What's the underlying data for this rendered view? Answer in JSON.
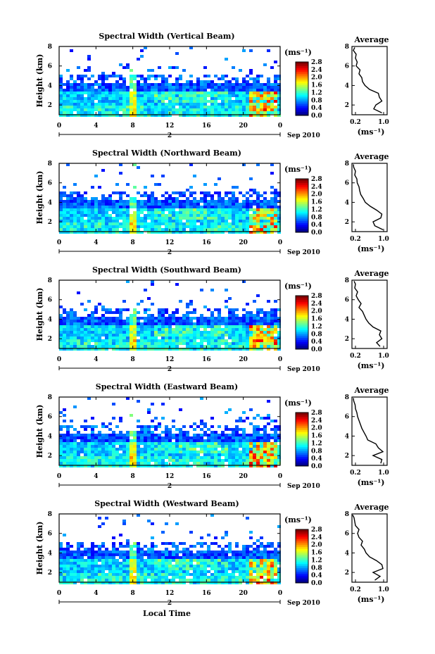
{
  "chart_data": [
    {
      "type": "heatmap",
      "title": "Spectral Width (Vertical Beam)",
      "ylabel": "Height (km)",
      "xlim": [
        0,
        24
      ],
      "ylim": [
        1,
        8
      ],
      "x_ticks": [
        "0",
        "4",
        "8",
        "12",
        "16",
        "20",
        "0"
      ],
      "y_ticks": [
        "2",
        "4",
        "6",
        "8"
      ],
      "date_label": "2",
      "date_suffix": "Sep 2010",
      "colorbar": {
        "unit": "(ms⁻¹)",
        "ticks": [
          "0.0",
          "0.4",
          "0.8",
          "1.2",
          "1.6",
          "2.0",
          "2.4",
          "2.8"
        ],
        "range": [
          0,
          2.8
        ]
      },
      "average": {
        "title": "Average",
        "xlabel": "(ms⁻¹)",
        "xlim": [
          0.1,
          1.1
        ],
        "ylim": [
          1,
          8
        ],
        "x_ticks": [
          "0.2",
          "1.0"
        ],
        "y_ticks": [
          "2",
          "4",
          "6",
          "8"
        ],
        "height": [
          1.2,
          1.6,
          2.0,
          2.4,
          2.8,
          3.2,
          3.6,
          4.0,
          4.4,
          4.8,
          5.2,
          5.6,
          6.0,
          6.4,
          6.8,
          7.2,
          7.6,
          7.9
        ],
        "width": [
          0.95,
          0.72,
          0.78,
          0.95,
          0.88,
          0.85,
          0.6,
          0.47,
          0.4,
          0.38,
          0.3,
          0.33,
          0.22,
          0.25,
          0.2,
          0.22,
          0.14,
          0.18
        ]
      }
    },
    {
      "type": "heatmap",
      "title": "Spectral Width (Northward Beam)",
      "ylabel": "Height (km)",
      "xlim": [
        0,
        24
      ],
      "ylim": [
        1,
        8
      ],
      "x_ticks": [
        "0",
        "4",
        "8",
        "12",
        "16",
        "20",
        "0"
      ],
      "y_ticks": [
        "2",
        "4",
        "6",
        "8"
      ],
      "date_label": "2",
      "date_suffix": "Sep 2010",
      "colorbar": {
        "unit": "(ms⁻¹)",
        "ticks": [
          "0.0",
          "0.4",
          "0.8",
          "1.2",
          "1.6",
          "2.0",
          "2.4",
          "2.8"
        ],
        "range": [
          0,
          2.8
        ]
      },
      "average": {
        "title": "Average",
        "xlabel": "(ms⁻¹)",
        "xlim": [
          0.1,
          1.1
        ],
        "ylim": [
          1,
          8
        ],
        "x_ticks": [
          "0.2",
          "1.0"
        ],
        "y_ticks": [
          "2",
          "4",
          "6",
          "8"
        ],
        "height": [
          1.2,
          1.6,
          2.0,
          2.4,
          2.8,
          3.2,
          3.6,
          4.0,
          4.4,
          4.8,
          5.2,
          5.6,
          6.0,
          6.4,
          6.8,
          7.2,
          7.6,
          7.9
        ],
        "width": [
          0.98,
          0.75,
          0.7,
          0.92,
          0.95,
          0.8,
          0.62,
          0.48,
          0.42,
          0.35,
          0.32,
          0.3,
          0.25,
          0.24,
          0.18,
          0.2,
          0.15,
          0.14
        ]
      }
    },
    {
      "type": "heatmap",
      "title": "Spectral Width (Southward Beam)",
      "ylabel": "Height (km)",
      "xlim": [
        0,
        24
      ],
      "ylim": [
        1,
        8
      ],
      "x_ticks": [
        "0",
        "4",
        "8",
        "12",
        "16",
        "20",
        "0"
      ],
      "y_ticks": [
        "2",
        "4",
        "6",
        "8"
      ],
      "date_label": "2",
      "date_suffix": "Sep 2010",
      "colorbar": {
        "unit": "(ms⁻¹)",
        "ticks": [
          "0.0",
          "0.4",
          "0.8",
          "1.2",
          "1.6",
          "2.0",
          "2.4",
          "2.8"
        ],
        "range": [
          0,
          2.8
        ]
      },
      "average": {
        "title": "Average",
        "xlabel": "(ms⁻¹)",
        "xlim": [
          0.1,
          1.1
        ],
        "ylim": [
          1,
          8
        ],
        "x_ticks": [
          "0.2",
          "1.0"
        ],
        "y_ticks": [
          "2",
          "4",
          "6",
          "8"
        ],
        "height": [
          1.2,
          1.6,
          2.0,
          2.4,
          2.8,
          3.2,
          3.6,
          4.0,
          4.4,
          4.8,
          5.2,
          5.6,
          6.0,
          6.4,
          6.8,
          7.2,
          7.6,
          7.9
        ],
        "width": [
          0.9,
          0.8,
          0.95,
          0.88,
          0.92,
          0.7,
          0.58,
          0.5,
          0.45,
          0.4,
          0.3,
          0.36,
          0.28,
          0.22,
          0.26,
          0.18,
          0.2,
          0.16
        ]
      }
    },
    {
      "type": "heatmap",
      "title": "Spectral Width (Eastward Beam)",
      "ylabel": "Height (km)",
      "xlim": [
        0,
        24
      ],
      "ylim": [
        1,
        8
      ],
      "x_ticks": [
        "0",
        "4",
        "8",
        "12",
        "16",
        "20",
        "0"
      ],
      "y_ticks": [
        "2",
        "4",
        "6",
        "8"
      ],
      "date_label": "2",
      "date_suffix": "Sep 2010",
      "colorbar": {
        "unit": "(ms⁻¹)",
        "ticks": [
          "0.0",
          "0.4",
          "0.8",
          "1.2",
          "1.6",
          "2.0",
          "2.4",
          "2.8"
        ],
        "range": [
          0,
          2.8
        ]
      },
      "average": {
        "title": "Average",
        "xlabel": "(ms⁻¹)",
        "xlim": [
          0.1,
          1.1
        ],
        "ylim": [
          1,
          8
        ],
        "x_ticks": [
          "0.2",
          "1.0"
        ],
        "y_ticks": [
          "2",
          "4",
          "6",
          "8"
        ],
        "height": [
          1.2,
          1.6,
          2.0,
          2.4,
          2.8,
          3.2,
          3.6,
          4.0,
          4.4,
          4.8,
          5.2,
          5.6,
          6.0,
          6.4,
          6.8,
          7.2,
          7.6,
          7.9
        ],
        "width": [
          0.92,
          0.95,
          0.7,
          0.98,
          0.85,
          0.78,
          0.55,
          0.5,
          0.44,
          0.38,
          0.34,
          0.3,
          0.26,
          0.24,
          0.2,
          0.19,
          0.15,
          0.14
        ]
      }
    },
    {
      "type": "heatmap",
      "title": "Spectral Width (Westward Beam)",
      "ylabel": "Height (km)",
      "xlim": [
        0,
        24
      ],
      "ylim": [
        1,
        8
      ],
      "x_ticks": [
        "0",
        "4",
        "8",
        "12",
        "16",
        "20",
        "0"
      ],
      "y_ticks": [
        "2",
        "4",
        "6",
        "8"
      ],
      "date_label": "2",
      "date_suffix": "Sep 2010",
      "xlabel": "Local Time",
      "colorbar": {
        "unit": "(ms⁻¹)",
        "ticks": [
          "0.0",
          "0.4",
          "0.8",
          "1.2",
          "1.6",
          "2.0",
          "2.4",
          "2.8"
        ],
        "range": [
          0,
          2.8
        ]
      },
      "average": {
        "title": "Average",
        "xlabel": "(ms⁻¹)",
        "xlim": [
          0.1,
          1.1
        ],
        "ylim": [
          1,
          8
        ],
        "x_ticks": [
          "0.2",
          "1.0"
        ],
        "y_ticks": [
          "2",
          "4",
          "6",
          "8"
        ],
        "height": [
          1.2,
          1.6,
          2.0,
          2.4,
          2.8,
          3.2,
          3.6,
          4.0,
          4.4,
          4.8,
          5.2,
          5.6,
          6.0,
          6.4,
          6.8,
          7.2,
          7.6,
          7.9
        ],
        "width": [
          0.75,
          0.9,
          0.7,
          0.98,
          0.95,
          0.8,
          0.6,
          0.5,
          0.45,
          0.36,
          0.4,
          0.3,
          0.26,
          0.3,
          0.2,
          0.18,
          0.16,
          0.12
        ]
      }
    }
  ]
}
